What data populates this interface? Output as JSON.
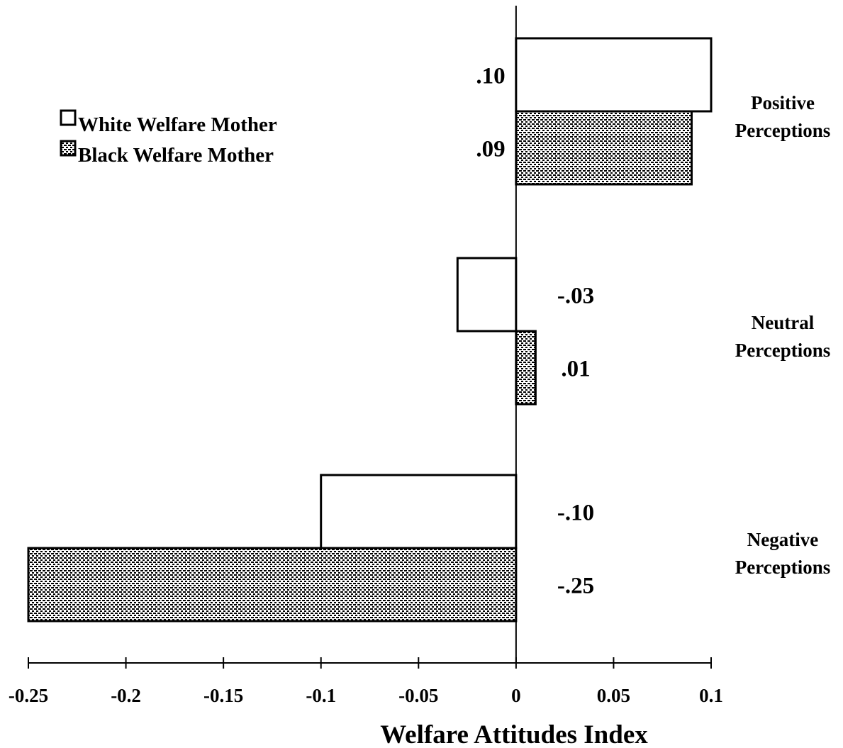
{
  "chart_data": {
    "type": "bar",
    "orientation": "horizontal",
    "xlabel": "Welfare Attitudes Index",
    "ylabel": "",
    "xlim": [
      -0.25,
      0.1
    ],
    "x_ticks": [
      -0.25,
      -0.2,
      -0.15,
      -0.1,
      -0.05,
      0,
      0.05,
      0.1
    ],
    "x_tick_labels": [
      "-0.25",
      "-0.2",
      "-0.15",
      "-0.1",
      "-0.05",
      "0",
      "0.05",
      "0.1"
    ],
    "grid": false,
    "legend_position": "top-left",
    "categories": [
      [
        "Positive",
        "Perceptions"
      ],
      [
        "Neutral",
        "Perceptions"
      ],
      [
        "Negative",
        "Perceptions"
      ]
    ],
    "series": [
      {
        "name": "White Welfare Mother",
        "fill": "#ffffff",
        "pattern": "none",
        "values": [
          0.1,
          -0.03,
          -0.1
        ],
        "labels": [
          ".10",
          "-.03",
          "-.10"
        ]
      },
      {
        "name": "Black Welfare Mother",
        "fill": "#000000",
        "pattern": "dense-dots",
        "values": [
          0.09,
          0.01,
          -0.25
        ],
        "labels": [
          ".09",
          ".01",
          "-.25"
        ]
      }
    ]
  }
}
